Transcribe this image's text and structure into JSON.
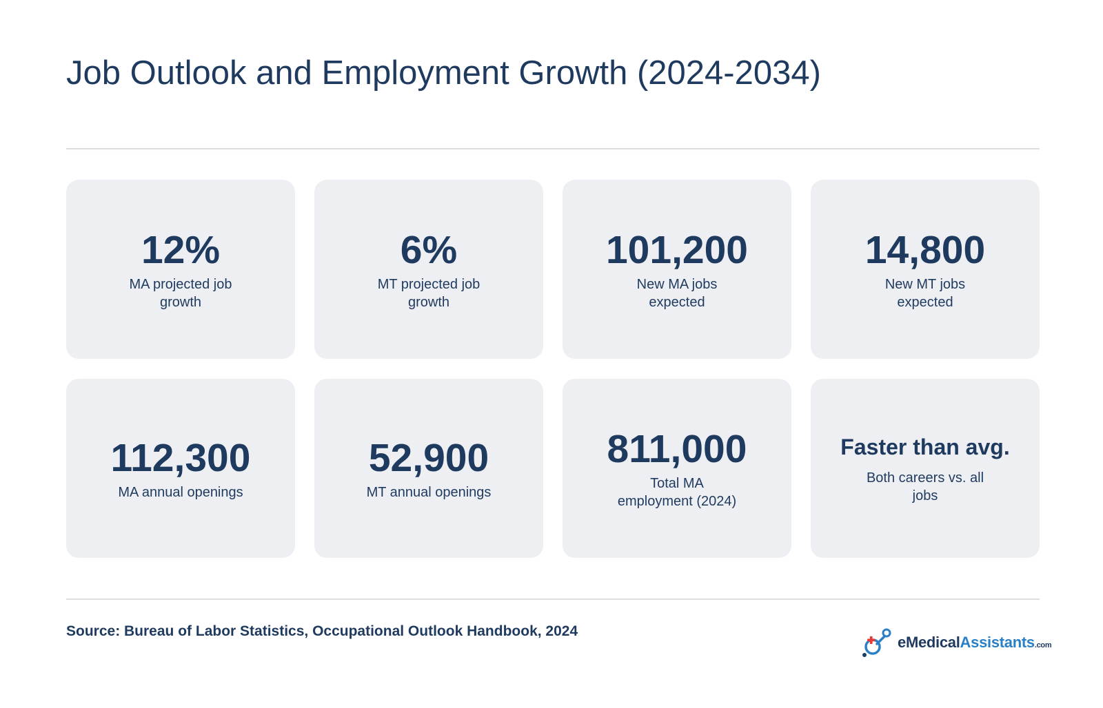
{
  "title": "Job Outlook and Employment Growth (2024-2034)",
  "cards": [
    {
      "value": "12%",
      "label": "MA projected job growth"
    },
    {
      "value": "6%",
      "label": "MT projected job growth"
    },
    {
      "value": "101,200",
      "label": "New MA jobs expected"
    },
    {
      "value": "14,800",
      "label": "New MT jobs expected"
    },
    {
      "value": "112,300",
      "label": "MA annual openings"
    },
    {
      "value": "52,900",
      "label": "MT annual openings"
    },
    {
      "value": "811,000",
      "label": "Total MA employment (2024)"
    },
    {
      "value": "Faster than avg.",
      "label": "Both careers vs. all jobs"
    }
  ],
  "source": "Source: Bureau of Labor Statistics, Occupational Outlook Handbook, 2024",
  "logo": {
    "prefix": "e",
    "medical": "Medical",
    "assistants": "Assistants",
    "suffix": ".com",
    "icon": "medical-cross-logo-icon",
    "colors": {
      "navy": "#1f3a5f",
      "blue": "#2a7fc6",
      "red": "#e53935"
    }
  }
}
